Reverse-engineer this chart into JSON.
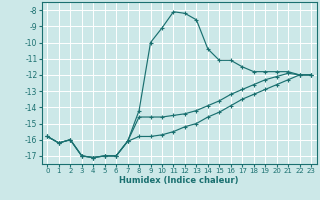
{
  "background_color": "#cce8e8",
  "grid_color": "#ffffff",
  "line_color": "#1a7070",
  "xlabel": "Humidex (Indice chaleur)",
  "xlim": [
    -0.5,
    23.5
  ],
  "ylim": [
    -17.5,
    -7.5
  ],
  "yticks": [
    -17,
    -16,
    -15,
    -14,
    -13,
    -12,
    -11,
    -10,
    -9,
    -8
  ],
  "xticks": [
    0,
    1,
    2,
    3,
    4,
    5,
    6,
    7,
    8,
    9,
    10,
    11,
    12,
    13,
    14,
    15,
    16,
    17,
    18,
    19,
    20,
    21,
    22,
    23
  ],
  "line1_x": [
    0,
    1,
    2,
    3,
    4,
    5,
    6,
    7,
    8,
    9,
    10,
    11,
    12,
    13,
    14,
    15,
    16,
    17,
    18,
    19,
    20,
    21,
    22,
    23
  ],
  "line1_y": [
    -15.8,
    -16.2,
    -16.0,
    -17.0,
    -17.1,
    -17.0,
    -17.0,
    -16.1,
    -14.2,
    -10.0,
    -9.1,
    -8.1,
    -8.2,
    -8.6,
    -10.4,
    -11.1,
    -11.1,
    -11.5,
    -11.8,
    -11.8,
    -11.8,
    -11.8,
    -12.0,
    -12.0
  ],
  "line2_x": [
    0,
    1,
    2,
    3,
    4,
    5,
    6,
    7,
    8,
    9,
    10,
    11,
    12,
    13,
    14,
    15,
    16,
    17,
    18,
    19,
    20,
    21,
    22,
    23
  ],
  "line2_y": [
    -15.8,
    -16.2,
    -16.0,
    -17.0,
    -17.1,
    -17.0,
    -17.0,
    -16.1,
    -14.6,
    -14.6,
    -14.6,
    -14.5,
    -14.4,
    -14.2,
    -13.9,
    -13.6,
    -13.2,
    -12.9,
    -12.6,
    -12.3,
    -12.1,
    -11.9,
    -12.0,
    -12.0
  ],
  "line3_x": [
    0,
    1,
    2,
    3,
    4,
    5,
    6,
    7,
    8,
    9,
    10,
    11,
    12,
    13,
    14,
    15,
    16,
    17,
    18,
    19,
    20,
    21,
    22,
    23
  ],
  "line3_y": [
    -15.8,
    -16.2,
    -16.0,
    -17.0,
    -17.1,
    -17.0,
    -17.0,
    -16.1,
    -15.8,
    -15.8,
    -15.7,
    -15.5,
    -15.2,
    -15.0,
    -14.6,
    -14.3,
    -13.9,
    -13.5,
    -13.2,
    -12.9,
    -12.6,
    -12.3,
    -12.0,
    -12.0
  ]
}
